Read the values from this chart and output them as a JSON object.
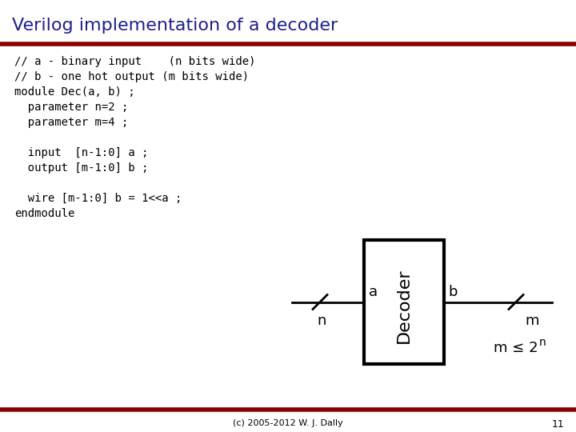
{
  "title": "Verilog implementation of a decoder",
  "title_color": "#1F1F8B",
  "bg_color": "#FFFFFF",
  "dark_red": "#8B0000",
  "code_lines": [
    "// a - binary input    (n bits wide)",
    "// b - one hot output (m bits wide)",
    "module Dec(a, b) ;",
    "  parameter n=2 ;",
    "  parameter m=4 ;",
    "",
    "  input  [n-1:0] a ;",
    "  output [m-1:0] b ;",
    "",
    "  wire [m-1:0] b = 1<<a ;",
    "endmodule"
  ],
  "code_color": "#000000",
  "footer_text": "(c) 2005-2012 W. J. Dally",
  "page_number": "11",
  "decoder_label": "Decoder",
  "input_label": "a",
  "output_label": "b",
  "bus_in_label": "n",
  "bus_out_label": "m",
  "constraint_base": "m ≤ 2",
  "constraint_sup": "n"
}
